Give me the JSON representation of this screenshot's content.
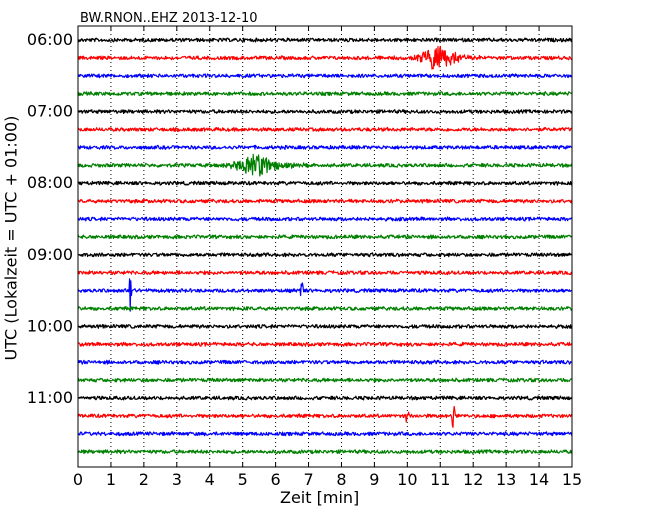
{
  "chart_data": {
    "type": "line",
    "title": "BW.RNON..EHZ 2013-12-10",
    "xlabel": "Zeit  [min]",
    "ylabel": "UTC (Lokalzeit = UTC + 01:00)",
    "xlim": [
      0,
      15
    ],
    "x_ticks": [
      "0",
      "1",
      "2",
      "3",
      "4",
      "5",
      "6",
      "7",
      "8",
      "9",
      "10",
      "11",
      "12",
      "13",
      "14",
      "15"
    ],
    "row_minutes": 15,
    "grid": {
      "vertical": "dotted"
    },
    "row_colors": [
      "#000000",
      "#ff0000",
      "#0000ff",
      "#008000"
    ],
    "rows": [
      {
        "time": "06:00",
        "events": []
      },
      {
        "time": "06:15",
        "events": [
          {
            "x": 11.0,
            "amplitude": 1.0,
            "kind": "quake"
          }
        ]
      },
      {
        "time": "06:30",
        "events": []
      },
      {
        "time": "06:45",
        "events": []
      },
      {
        "time": "07:00",
        "events": []
      },
      {
        "time": "07:15",
        "events": []
      },
      {
        "time": "07:30",
        "events": []
      },
      {
        "time": "07:45",
        "events": [
          {
            "x": 5.5,
            "amplitude": 1.0,
            "kind": "quake"
          }
        ]
      },
      {
        "time": "08:00",
        "events": []
      },
      {
        "time": "08:15",
        "events": []
      },
      {
        "time": "08:30",
        "events": []
      },
      {
        "time": "08:45",
        "events": []
      },
      {
        "time": "09:00",
        "events": []
      },
      {
        "time": "09:15",
        "events": []
      },
      {
        "time": "09:30",
        "events": [
          {
            "x": 1.6,
            "amplitude": 1.1,
            "kind": "spike"
          },
          {
            "x": 6.8,
            "amplitude": 0.4,
            "kind": "spike"
          }
        ]
      },
      {
        "time": "09:45",
        "events": []
      },
      {
        "time": "10:00",
        "events": []
      },
      {
        "time": "10:15",
        "events": []
      },
      {
        "time": "10:30",
        "events": []
      },
      {
        "time": "10:45",
        "events": []
      },
      {
        "time": "11:00",
        "events": []
      },
      {
        "time": "11:15",
        "events": [
          {
            "x": 10.0,
            "amplitude": 0.4,
            "kind": "spike"
          },
          {
            "x": 11.4,
            "amplitude": 0.6,
            "kind": "spike"
          }
        ]
      },
      {
        "time": "11:30",
        "events": []
      },
      {
        "time": "11:45",
        "events": []
      }
    ],
    "y_ticks": [
      "06:00",
      "07:00",
      "08:00",
      "09:00",
      "10:00",
      "11:00"
    ]
  }
}
